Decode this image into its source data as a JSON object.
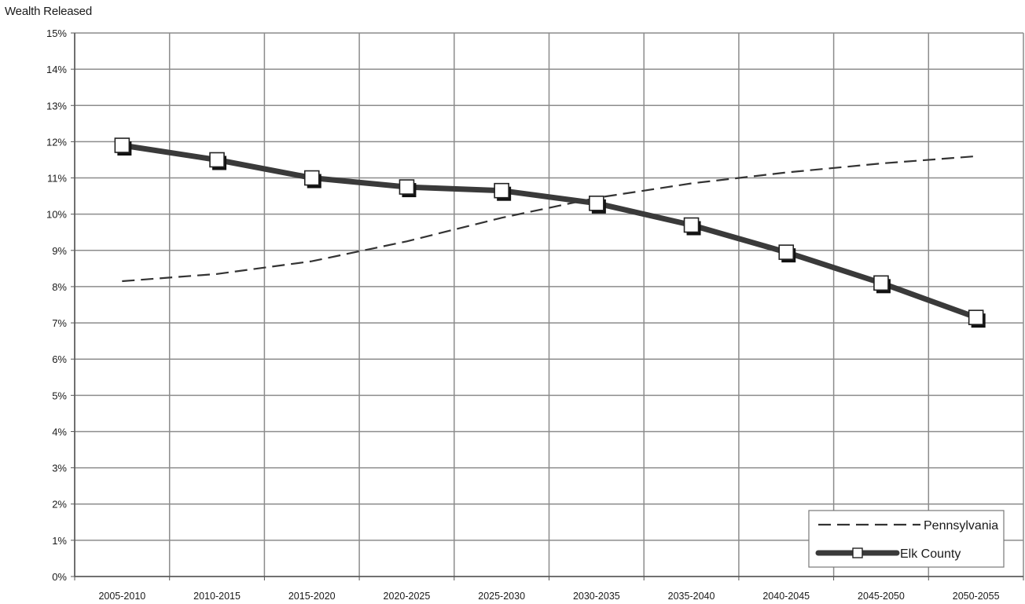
{
  "chart_data": {
    "type": "line",
    "title": "",
    "ylabel": "Wealth Released",
    "xlabel": "",
    "categories": [
      "2005-2010",
      "2010-2015",
      "2015-2020",
      "2020-2025",
      "2025-2030",
      "2030-2035",
      "2035-2040",
      "2040-2045",
      "2045-2050",
      "2050-2055"
    ],
    "y_ticks": [
      "0%",
      "1%",
      "2%",
      "3%",
      "4%",
      "5%",
      "6%",
      "7%",
      "8%",
      "9%",
      "10%",
      "11%",
      "12%",
      "13%",
      "14%",
      "15%"
    ],
    "ylim": [
      0,
      15
    ],
    "grid": true,
    "legend_position": "bottom-right",
    "series": [
      {
        "name": "Pennsylvania",
        "style": "dashed",
        "color": "#333333",
        "x": [
          0,
          1,
          2,
          3,
          4,
          5,
          6,
          7,
          8,
          9
        ],
        "values": [
          8.15,
          8.35,
          8.7,
          9.25,
          9.9,
          10.45,
          10.85,
          11.15,
          11.4,
          11.6
        ]
      },
      {
        "name": "Elk County",
        "style": "solid-thick-square-markers",
        "color": "#3a3a3a",
        "x": [
          0,
          1,
          2,
          3,
          4,
          5,
          6,
          7,
          8,
          9
        ],
        "values": [
          11.9,
          11.5,
          11.0,
          10.75,
          10.65,
          10.3,
          9.7,
          8.95,
          8.1,
          7.15
        ]
      }
    ]
  }
}
